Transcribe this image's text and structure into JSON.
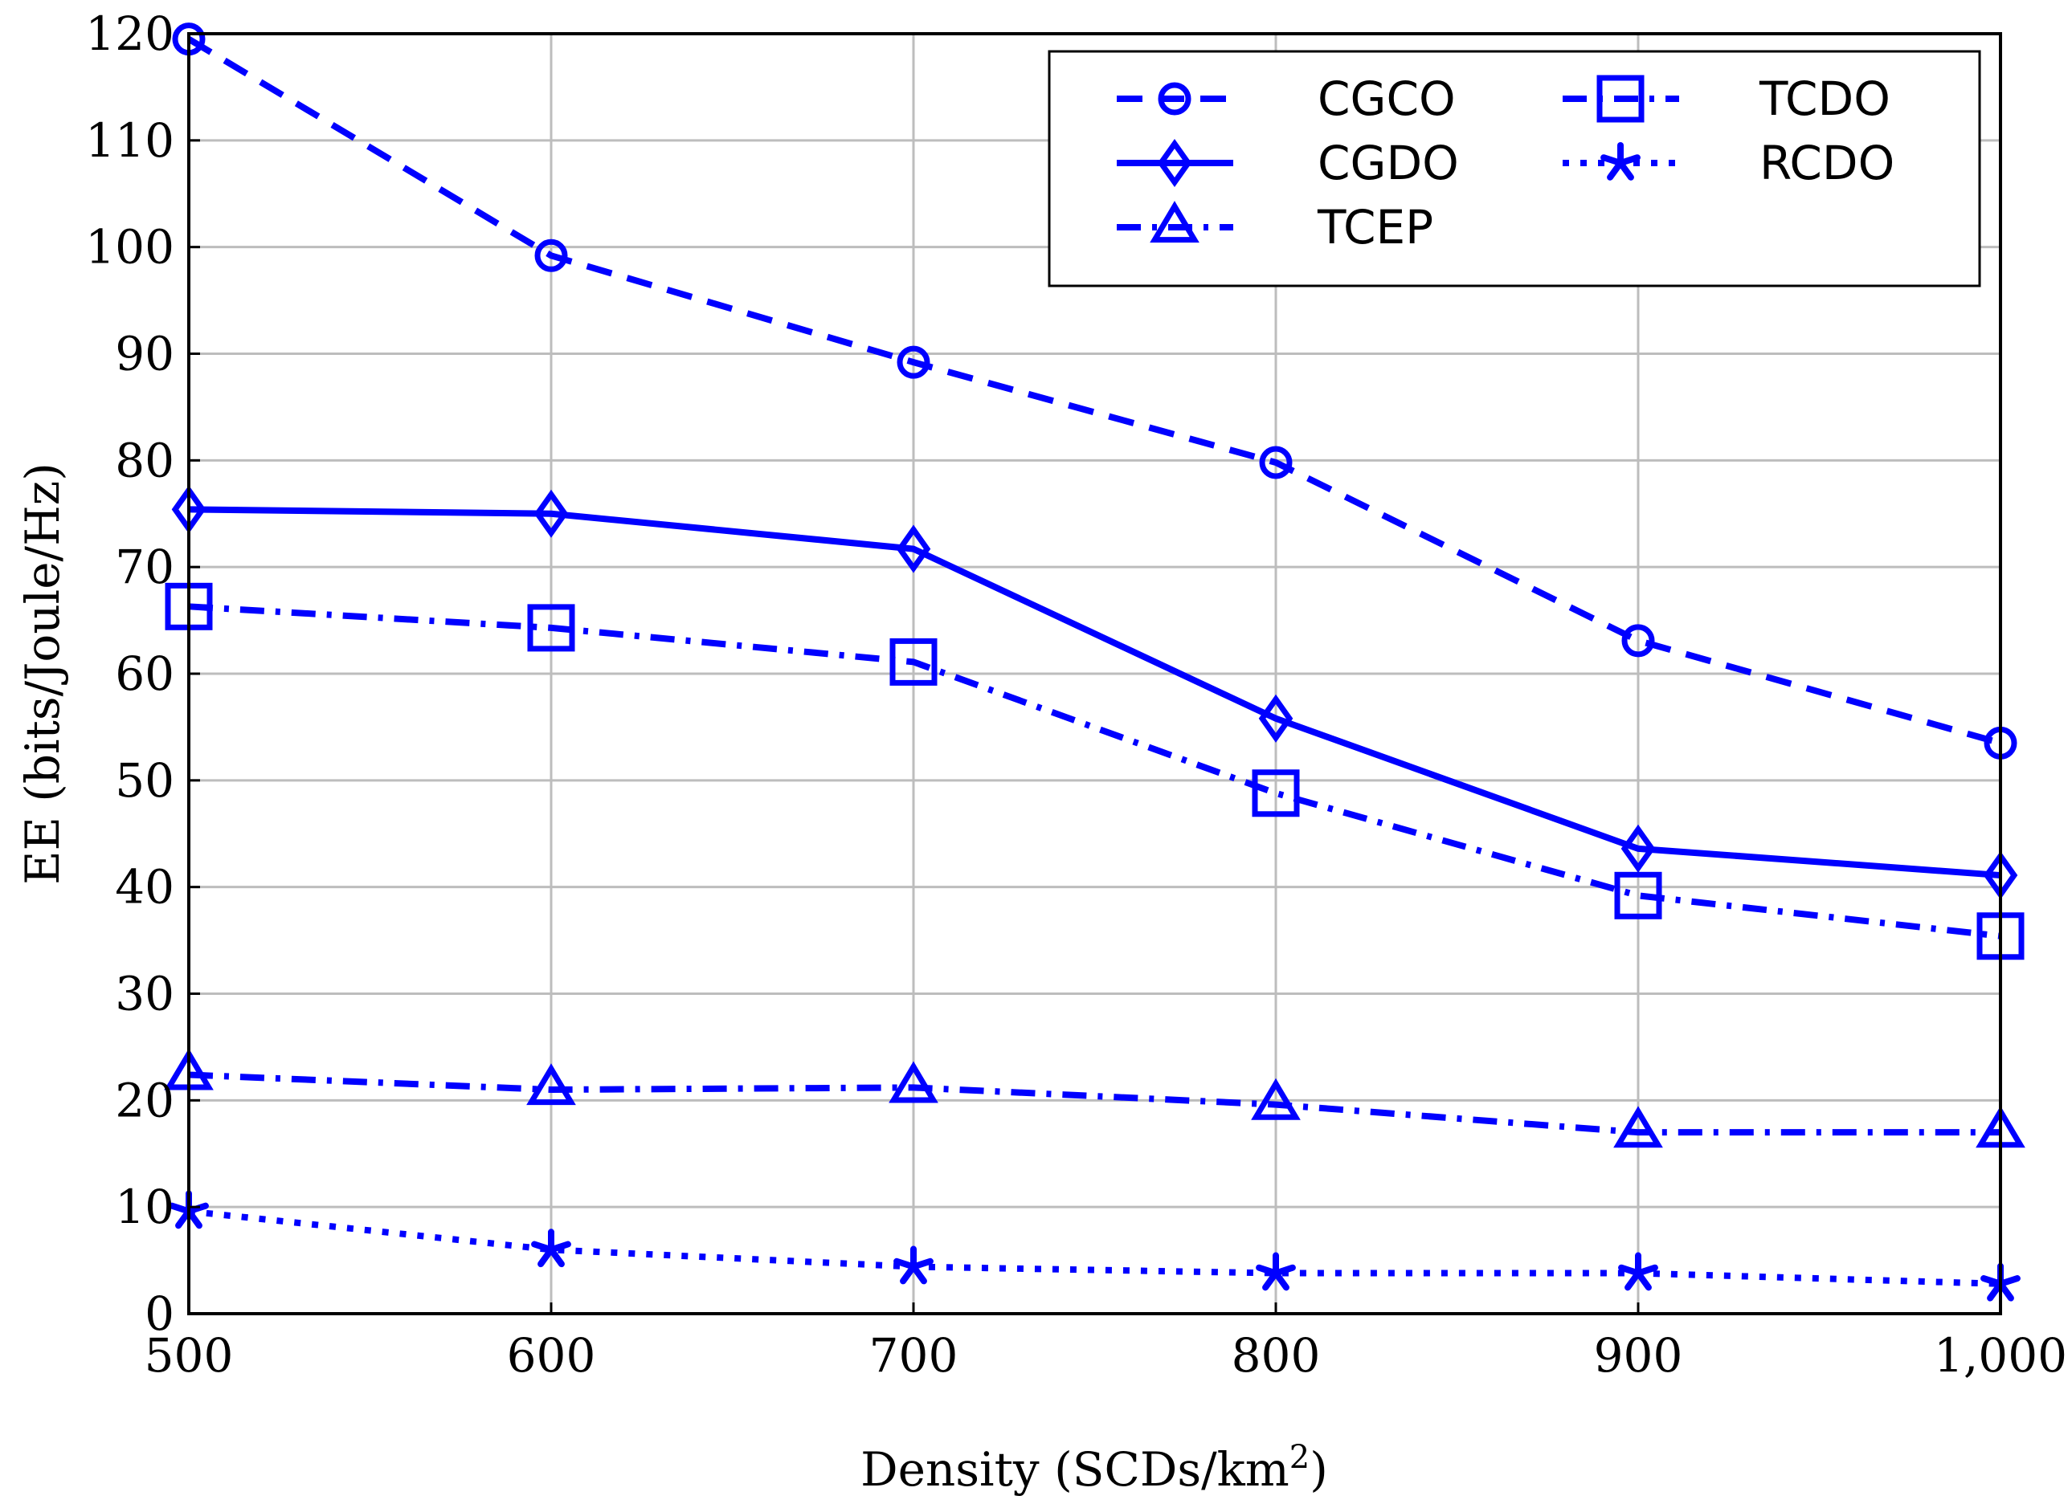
{
  "chart_data": {
    "type": "line",
    "title": "",
    "xlabel": "Density (SCDs/km",
    "xlabel_sup": "2",
    "xlabel_suffix": ")",
    "ylabel": "EE (bits/Joule/Hz)",
    "x": [
      500,
      600,
      700,
      800,
      900,
      1000
    ],
    "xlim": [
      500,
      1000
    ],
    "ylim": [
      0,
      120
    ],
    "xticks": [
      500,
      600,
      700,
      800,
      900,
      1000
    ],
    "xtick_labels": [
      "500",
      "600",
      "700",
      "800",
      "900",
      "1,000"
    ],
    "yticks": [
      0,
      10,
      20,
      30,
      40,
      50,
      60,
      70,
      80,
      90,
      100,
      110,
      120
    ],
    "ytick_labels": [
      "0",
      "10",
      "20",
      "30",
      "40",
      "50",
      "60",
      "70",
      "80",
      "90",
      "100",
      "110",
      "120"
    ],
    "grid": true,
    "legend_position": "top-right",
    "color": "#0000ff",
    "series": [
      {
        "name": "CGCO",
        "values": [
          119.5,
          99.2,
          89.2,
          79.8,
          63.1,
          53.5
        ],
        "marker": "circle",
        "dash": "dashed"
      },
      {
        "name": "CGDO",
        "values": [
          75.4,
          75.0,
          71.7,
          55.8,
          43.6,
          41.1
        ],
        "marker": "diamond",
        "dash": "solid"
      },
      {
        "name": "TCEP",
        "values": [
          22.4,
          21.0,
          21.2,
          19.6,
          17.0,
          17.0
        ],
        "marker": "triangle",
        "dash": "dashdot"
      },
      {
        "name": "TCDO",
        "values": [
          66.3,
          64.3,
          61.1,
          48.8,
          39.2,
          35.4
        ],
        "marker": "square",
        "dash": "dashdot"
      },
      {
        "name": "RCDO",
        "values": [
          9.6,
          6.0,
          4.4,
          3.8,
          3.8,
          2.8
        ],
        "marker": "star",
        "dash": "dotted"
      }
    ]
  }
}
